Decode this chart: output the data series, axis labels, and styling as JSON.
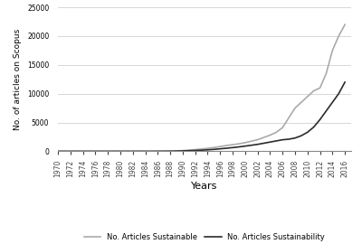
{
  "years": [
    1970,
    1971,
    1972,
    1973,
    1974,
    1975,
    1976,
    1977,
    1978,
    1979,
    1980,
    1981,
    1982,
    1983,
    1984,
    1985,
    1986,
    1987,
    1988,
    1989,
    1990,
    1991,
    1992,
    1993,
    1994,
    1995,
    1996,
    1997,
    1998,
    1999,
    2000,
    2001,
    2002,
    2003,
    2004,
    2005,
    2006,
    2007,
    2008,
    2009,
    2010,
    2011,
    2012,
    2013,
    2014,
    2015,
    2016
  ],
  "sustainability": [
    0,
    0,
    0,
    0,
    0,
    0,
    0,
    0,
    0,
    0,
    0,
    0,
    0,
    0,
    0,
    0,
    5,
    10,
    20,
    40,
    70,
    100,
    140,
    190,
    250,
    330,
    430,
    530,
    640,
    760,
    900,
    1050,
    1200,
    1400,
    1600,
    1800,
    2000,
    2100,
    2300,
    2700,
    3300,
    4200,
    5500,
    7000,
    8500,
    10000,
    12000
  ],
  "sustainable": [
    0,
    0,
    0,
    0,
    0,
    0,
    0,
    0,
    0,
    0,
    0,
    0,
    0,
    0,
    0,
    0,
    5,
    15,
    30,
    70,
    120,
    200,
    290,
    390,
    510,
    650,
    820,
    1000,
    1150,
    1300,
    1500,
    1750,
    2000,
    2400,
    2800,
    3300,
    4100,
    5800,
    7500,
    8500,
    9500,
    10500,
    11000,
    13500,
    17500,
    20000,
    22000
  ],
  "xlabel": "Years",
  "ylabel": "No. of articles on Scopus",
  "xticks": [
    1970,
    1972,
    1974,
    1976,
    1978,
    1980,
    1982,
    1984,
    1986,
    1988,
    1990,
    1992,
    1994,
    1996,
    1998,
    2000,
    2002,
    2004,
    2006,
    2008,
    2010,
    2012,
    2014,
    2016
  ],
  "yticks": [
    0,
    5000,
    10000,
    15000,
    20000,
    25000
  ],
  "ylim": [
    0,
    25000
  ],
  "xlim": [
    1970,
    2017
  ],
  "color_sustainability": "#2b2b2b",
  "color_sustainable": "#aaaaaa",
  "label_sustainability": "No. Articles Sustainability",
  "label_sustainable": "No. Articles Sustainable",
  "line_width": 1.2,
  "grid_color": "#d0d0d0",
  "background_color": "#ffffff",
  "tick_fontsize": 5.5,
  "ylabel_fontsize": 6.5,
  "xlabel_fontsize": 8,
  "legend_fontsize": 6
}
